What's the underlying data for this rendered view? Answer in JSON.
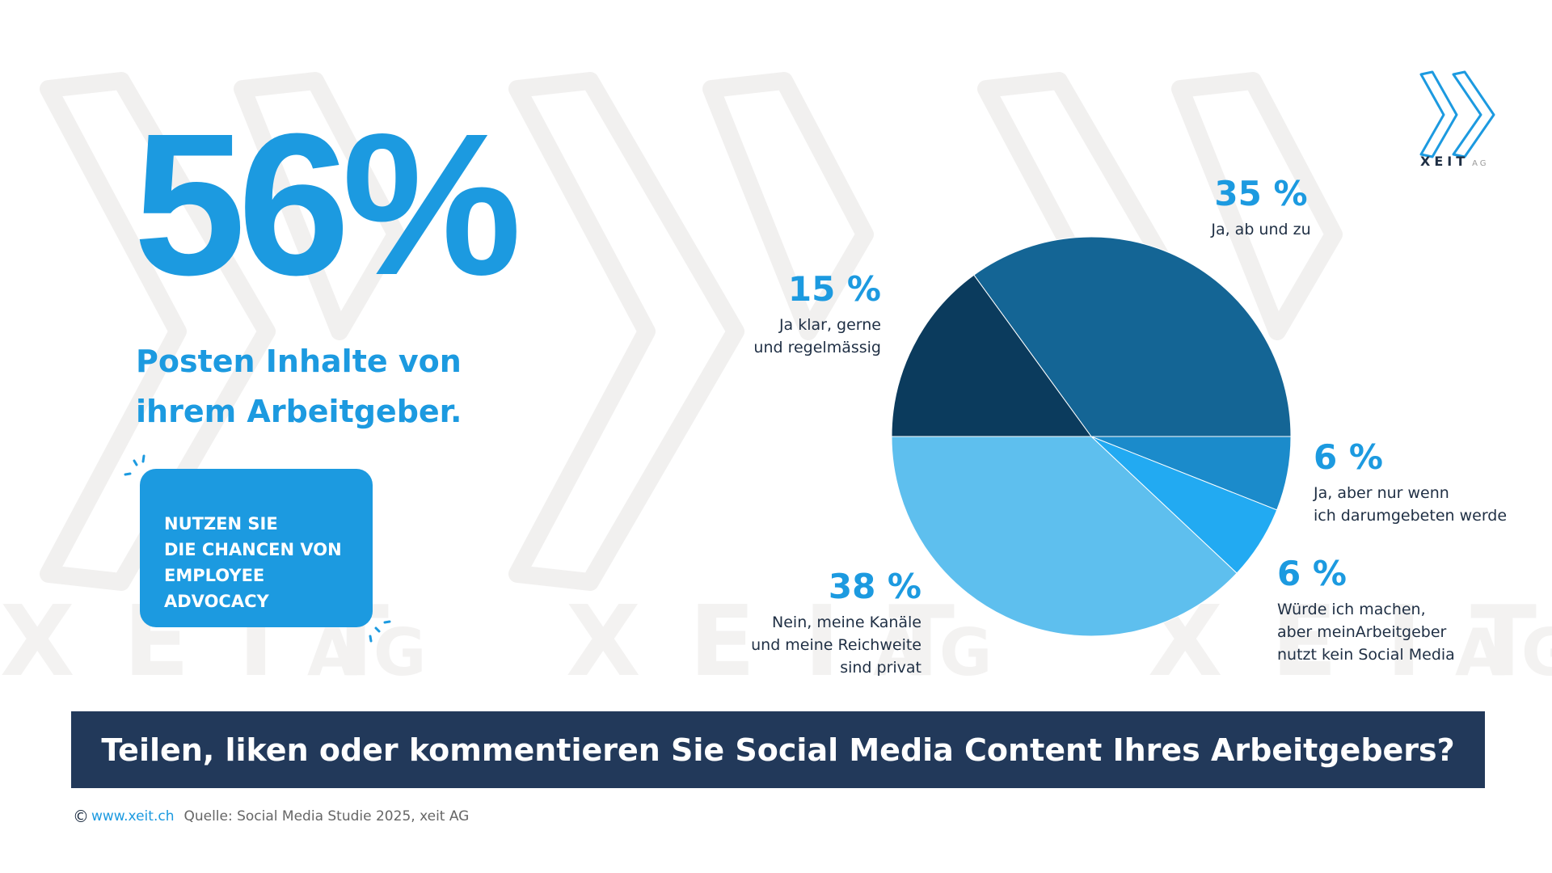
{
  "headline": "56%",
  "subline": "Posten  Inhalte von\nihrem Arbeitgeber.",
  "cta": "NUTZEN SIE\nDIE CHANCEN VON\nEMPLOYEE ADVOCACY",
  "logo": {
    "name": "XEIT",
    "suffix": "AG"
  },
  "question": "Teilen, liken oder kommentieren Sie Social Media Content Ihres Arbeitgebers?",
  "footer": {
    "copyright_symbol": "©",
    "url": "www.xeit.ch",
    "source": "Quelle: Social Media Studie 2025, xeit AG"
  },
  "colors": {
    "accent": "#1c9ae0",
    "banner": "#22395a",
    "slices": [
      "#146595",
      "#1b8bcb",
      "#22aaf2",
      "#5ebfee",
      "#0b3b5d"
    ]
  },
  "chart_data": {
    "type": "pie",
    "slices": [
      {
        "label_pct": "35 %",
        "value": 35,
        "label": "Ja, ab und zu"
      },
      {
        "label_pct": "6 %",
        "value": 6,
        "label": "Ja, aber nur wenn\nich darumgebeten werde"
      },
      {
        "label_pct": "6 %",
        "value": 6,
        "label": "Würde ich machen,\naber meinArbeitgeber\nnutzt kein Social Media"
      },
      {
        "label_pct": "38 %",
        "value": 38,
        "label": "Nein, meine Kanäle\nund meine Reichweite\nsind privat"
      },
      {
        "label_pct": "15 %",
        "value": 15,
        "label": "Ja klar, gerne\nund regelmässig"
      }
    ]
  }
}
